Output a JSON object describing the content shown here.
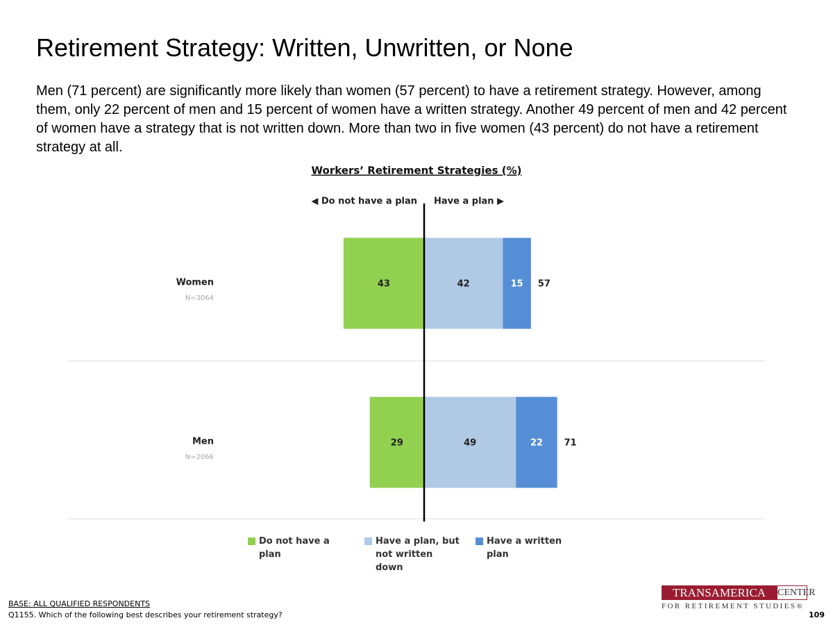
{
  "title": "Retirement Strategy: Written, Unwritten, or None",
  "subtitle": "Men (71 percent) are significantly more likely than women (57 percent) to have a retirement strategy. However, among them, only 22 percent of men and 15 percent of women have a written strategy. Another 49 percent of men and 42 percent of women have a strategy that is not written down. More than two in five women (43 percent) do not have a retirement strategy at all.",
  "chart_data": {
    "type": "diverging_bar",
    "title": "Workers’ Retirement Strategies (%)",
    "left_label": "◀ Do not have a plan",
    "right_label": "Have a plan ▶",
    "categories": [
      "Women",
      "Men"
    ],
    "category_notes": [
      "N=3064",
      "N=2066"
    ],
    "series": [
      {
        "name": "Do not have a plan",
        "color": "#92d050",
        "side": "left",
        "values": [
          43,
          29
        ]
      },
      {
        "name": "Have a plan, but not written down",
        "color": "#b0c9e4",
        "side": "right",
        "values": [
          42,
          49
        ]
      },
      {
        "name": "Have a written plan",
        "color": "#558ed5",
        "side": "right",
        "values": [
          15,
          22
        ]
      }
    ],
    "totals": [
      57,
      71
    ]
  },
  "footer": {
    "base": "BASE: ALL QUALIFIED RESPONDENTS",
    "question": "Q1155. Which of the following best describes your retirement strategy?",
    "page": "109"
  },
  "logo": {
    "name": "TRANSAMERICA",
    "box": "CENTER",
    "tagline": "FOR RETIREMENT STUDIES®"
  }
}
